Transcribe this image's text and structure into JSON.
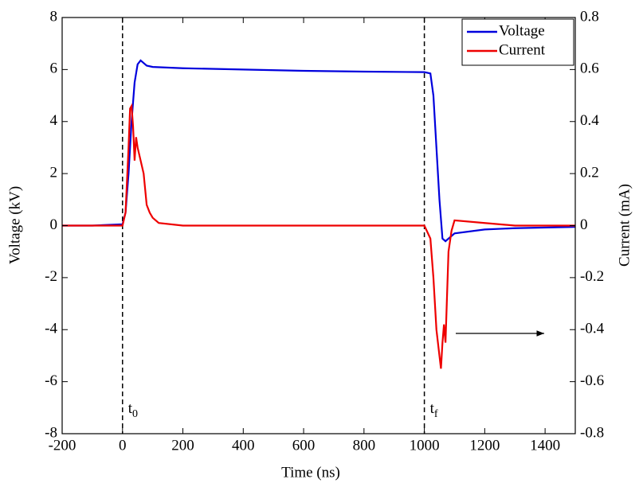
{
  "chart_data": {
    "type": "line",
    "xlabel": "Time (ns)",
    "ylabel": "Voltage (kV)",
    "y2label": "Current (mA)",
    "xlim": [
      -200,
      1500
    ],
    "xticks": [
      -200,
      0,
      200,
      400,
      600,
      800,
      1000,
      1200,
      1400
    ],
    "ylim": [
      -8,
      8
    ],
    "yticks": [
      -8,
      -6,
      -4,
      -2,
      0,
      2,
      4,
      6,
      8
    ],
    "y2lim": [
      -0.8,
      0.8
    ],
    "y2ticks": [
      -0.8,
      -0.6,
      -0.4,
      -0.2,
      0,
      0.2,
      0.4,
      0.6,
      0.8
    ],
    "legend": "upper right",
    "markers": [
      {
        "x": 0,
        "label": "t",
        "sub": "0"
      },
      {
        "x": 1000,
        "label": "t",
        "sub": "f"
      }
    ],
    "series": [
      {
        "name": "Voltage",
        "color": "#0000dd",
        "x": [
          -200,
          -100,
          0,
          10,
          20,
          30,
          40,
          50,
          60,
          70,
          80,
          100,
          200,
          400,
          600,
          800,
          1000,
          1020,
          1030,
          1040,
          1050,
          1060,
          1070,
          1100,
          1200,
          1300,
          1500
        ],
        "values": [
          0,
          0,
          0.05,
          0.5,
          2,
          4,
          5.5,
          6.2,
          6.35,
          6.25,
          6.15,
          6.1,
          6.05,
          6.0,
          5.95,
          5.92,
          5.9,
          5.85,
          5,
          3,
          1,
          -0.5,
          -0.6,
          -0.3,
          -0.15,
          -0.1,
          -0.05
        ]
      },
      {
        "name": "Current",
        "color": "#ee0000",
        "axis": "y2",
        "x": [
          -200,
          0,
          10,
          20,
          25,
          30,
          35,
          40,
          45,
          50,
          60,
          70,
          80,
          90,
          100,
          120,
          200,
          400,
          600,
          800,
          1000,
          1020,
          1030,
          1040,
          1050,
          1055,
          1060,
          1065,
          1070,
          1080,
          1090,
          1100,
          1200,
          1300,
          1400,
          1500
        ],
        "values": [
          0,
          0,
          0.05,
          0.3,
          0.45,
          0.46,
          0.38,
          0.25,
          0.34,
          0.3,
          0.25,
          0.2,
          0.08,
          0.05,
          0.03,
          0.01,
          0,
          0,
          0,
          0,
          0,
          -0.05,
          -0.2,
          -0.4,
          -0.5,
          -0.55,
          -0.45,
          -0.38,
          -0.45,
          -0.1,
          -0.02,
          0.02,
          0.01,
          0,
          0,
          0
        ]
      }
    ]
  }
}
